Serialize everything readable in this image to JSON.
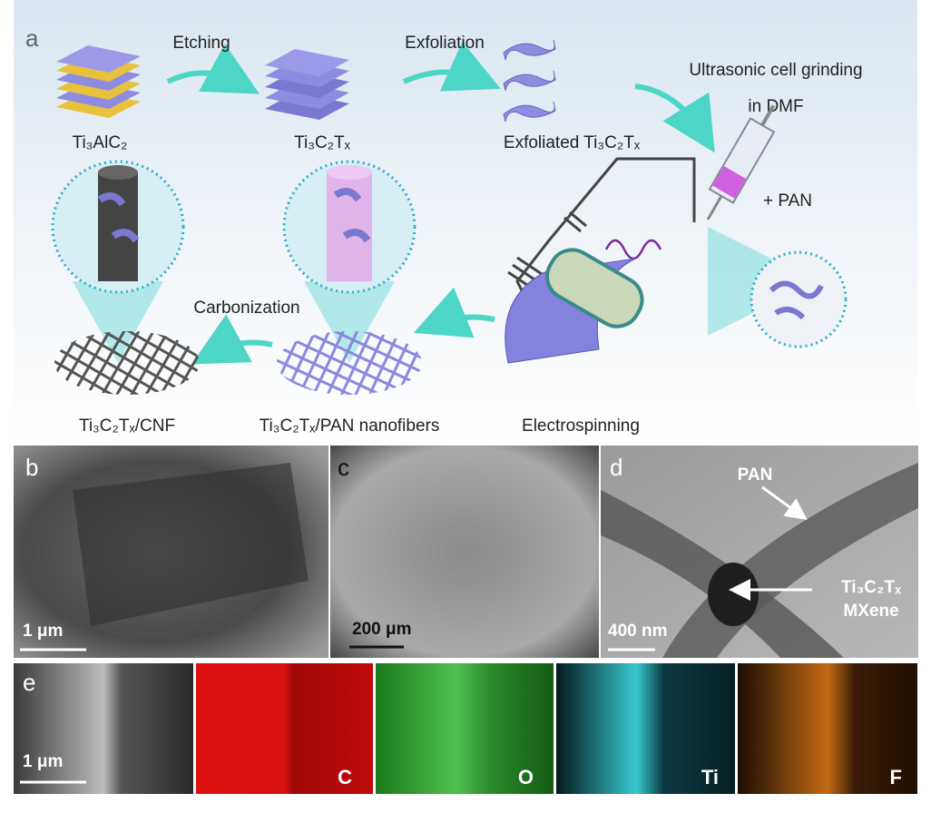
{
  "panel_a": {
    "label": "a",
    "steps": {
      "etching": "Etching",
      "exfoliation": "Exfoliation",
      "grinding_1": "Ultrasonic cell grinding",
      "grinding_2": "in DMF",
      "pan": "+ PAN",
      "carbonization": "Carbonization"
    },
    "materials": {
      "max_phase": "Ti₃AlC₂",
      "mxene": "Ti₃C₂Tₓ",
      "exfoliated": "Exfoliated Ti₃C₂Tₓ",
      "cnf": "Ti₃C₂Tₓ/CNF",
      "pan_fibers": "Ti₃C₂Tₓ/PAN nanofibers",
      "electrospinning": "Electrospinning"
    }
  },
  "panel_b": {
    "label": "b",
    "scale": "1 μm"
  },
  "panel_c": {
    "label": "c",
    "scale": "200 μm"
  },
  "panel_d": {
    "label": "d",
    "scale": "400 nm",
    "pan": "PAN",
    "mxene_1": "Ti₃C₂Tₓ",
    "mxene_2": "MXene"
  },
  "panel_e": {
    "label": "e",
    "scale": "1 μm",
    "elements": [
      "C",
      "O",
      "Ti",
      "F"
    ]
  }
}
